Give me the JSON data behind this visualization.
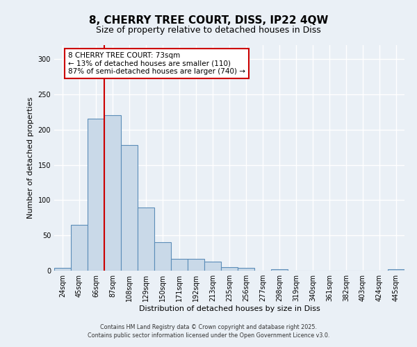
{
  "title_line1": "8, CHERRY TREE COURT, DISS, IP22 4QW",
  "title_line2": "Size of property relative to detached houses in Diss",
  "xlabel": "Distribution of detached houses by size in Diss",
  "ylabel": "Number of detached properties",
  "bar_labels": [
    "24sqm",
    "45sqm",
    "66sqm",
    "87sqm",
    "108sqm",
    "129sqm",
    "150sqm",
    "171sqm",
    "192sqm",
    "213sqm",
    "235sqm",
    "256sqm",
    "277sqm",
    "298sqm",
    "319sqm",
    "340sqm",
    "361sqm",
    "382sqm",
    "403sqm",
    "424sqm",
    "445sqm"
  ],
  "bar_values": [
    4,
    65,
    216,
    221,
    178,
    90,
    40,
    17,
    17,
    13,
    5,
    4,
    0,
    2,
    0,
    0,
    0,
    0,
    0,
    0,
    2
  ],
  "bar_color": "#c9d9e8",
  "bar_edge_color": "#5b8db8",
  "vline_x": 2.5,
  "vline_color": "#cc0000",
  "annotation_box_text": "8 CHERRY TREE COURT: 73sqm\n← 13% of detached houses are smaller (110)\n87% of semi-detached houses are larger (740) →",
  "ylim": [
    0,
    320
  ],
  "yticks": [
    0,
    50,
    100,
    150,
    200,
    250,
    300
  ],
  "footer_line1": "Contains HM Land Registry data © Crown copyright and database right 2025.",
  "footer_line2": "Contains public sector information licensed under the Open Government Licence v3.0.",
  "background_color": "#eaf0f6",
  "grid_color": "#ffffff",
  "title_fontsize": 11,
  "subtitle_fontsize": 9,
  "xlabel_fontsize": 8,
  "ylabel_fontsize": 8,
  "tick_fontsize": 7,
  "ann_fontsize": 7.5,
  "footer_fontsize": 5.8
}
